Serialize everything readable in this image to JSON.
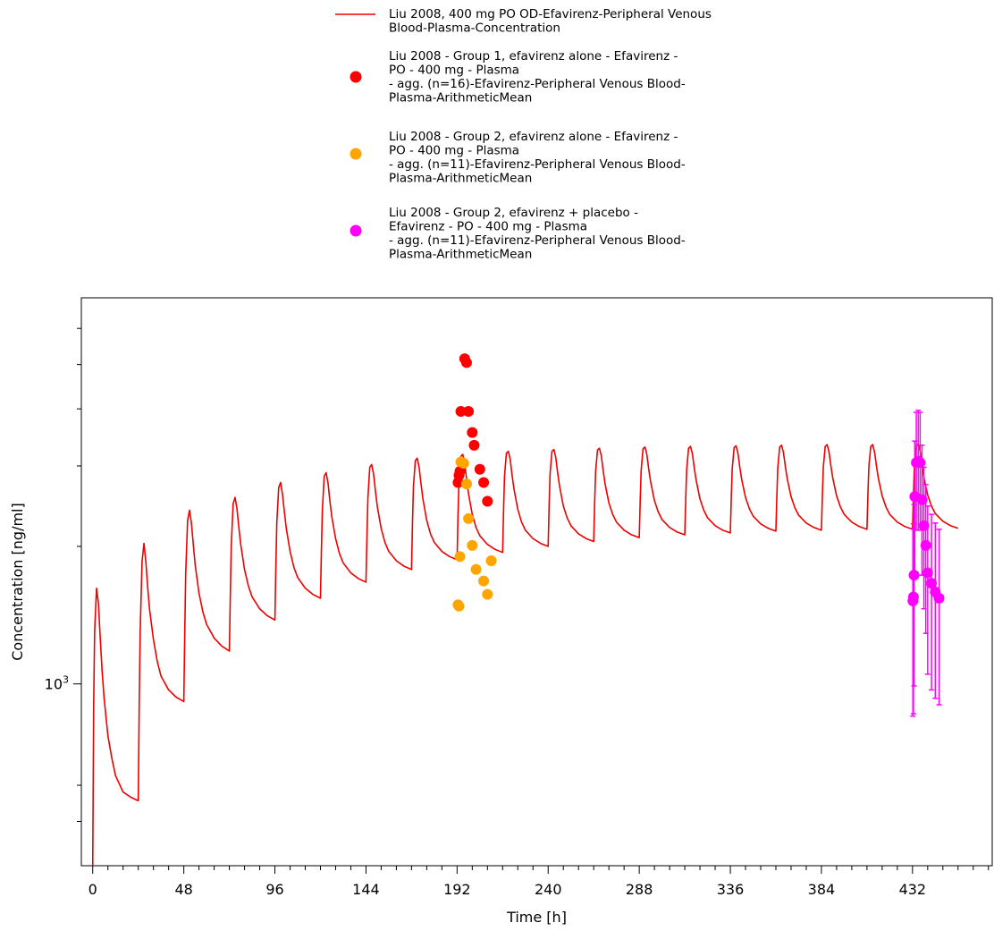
{
  "chart_data": {
    "type": "line",
    "title": "",
    "xlabel": "Time [h]",
    "ylabel": "Concentration [ng/ml]",
    "y_scale": "log",
    "xlim": [
      -6,
      474
    ],
    "ylim": [
      400,
      7000
    ],
    "x_ticks": [
      0,
      48,
      96,
      144,
      192,
      240,
      288,
      336,
      384,
      432
    ],
    "x_tick_labels": [
      "0",
      "48",
      "96",
      "144",
      "192",
      "240",
      "288",
      "336",
      "384",
      "432"
    ],
    "x_minor_step": 8,
    "y_tick_label": {
      "base": "10",
      "exponent": "3",
      "value": 1000
    },
    "y_minor_ticks": [
      500,
      600,
      2000,
      3000,
      4000,
      5000,
      6000
    ],
    "legend": {
      "placement": "top-center"
    },
    "grid": false,
    "simulation_series": {
      "name_lines": [
        "Liu 2008, 400 mg PO OD-Efavirenz-Peripheral Venous",
        "Blood-Plasma-Concentration"
      ],
      "color": "#ee0000",
      "dose_interval_h": 24,
      "n_doses": 19,
      "end_time_h": 456,
      "x": [
        0,
        0.5,
        1,
        2,
        3,
        4,
        5,
        6,
        8,
        10,
        12,
        16,
        20,
        24,
        24.5,
        25,
        26,
        27,
        28,
        29,
        30,
        32,
        34,
        36,
        40,
        44,
        48,
        48.5,
        49,
        50,
        51,
        52,
        53,
        54,
        56,
        58,
        60,
        64,
        68,
        72,
        72.5,
        73,
        74,
        75,
        76,
        77,
        78,
        80,
        82,
        84,
        88,
        92,
        96,
        96.5,
        97,
        98,
        99,
        100,
        101,
        102,
        104,
        106,
        108,
        112,
        116,
        120,
        120.5,
        121,
        122,
        123,
        124,
        125,
        126,
        128,
        130,
        132,
        136,
        140,
        144,
        144.5,
        145,
        146,
        147,
        148,
        149,
        150,
        152,
        154,
        156,
        160,
        164,
        168,
        168.5,
        169,
        170,
        171,
        172,
        173,
        174,
        176,
        178,
        180,
        184,
        188,
        192,
        192.5,
        193,
        194,
        195,
        196,
        197,
        198,
        200,
        202,
        204,
        208,
        212,
        216,
        216.5,
        217,
        218,
        219,
        220,
        221,
        222,
        224,
        226,
        228,
        232,
        236,
        240,
        240.5,
        241,
        242,
        243,
        244,
        245,
        246,
        248,
        250,
        252,
        256,
        260,
        264,
        264.5,
        265,
        266,
        267,
        268,
        269,
        270,
        272,
        274,
        276,
        280,
        284,
        288,
        288.5,
        289,
        290,
        291,
        292,
        293,
        294,
        296,
        298,
        300,
        304,
        308,
        312,
        312.5,
        313,
        314,
        315,
        316,
        317,
        318,
        320,
        322,
        324,
        328,
        332,
        336,
        336.5,
        337,
        338,
        339,
        340,
        341,
        342,
        344,
        346,
        348,
        352,
        356,
        360,
        360.5,
        361,
        362,
        363,
        364,
        365,
        366,
        368,
        370,
        372,
        376,
        380,
        384,
        384.5,
        385,
        386,
        387,
        388,
        389,
        390,
        392,
        394,
        396,
        400,
        404,
        408,
        408.5,
        409,
        410,
        411,
        412,
        413,
        414,
        416,
        418,
        420,
        424,
        428,
        432,
        432.5,
        433,
        434,
        435,
        436,
        437,
        438,
        440,
        442,
        444,
        448,
        452,
        456
      ],
      "y": [
        400,
        900,
        1300,
        1620,
        1500,
        1250,
        1060,
        930,
        770,
        690,
        630,
        580,
        565,
        555,
        900,
        1300,
        1850,
        2030,
        1850,
        1620,
        1450,
        1250,
        1120,
        1040,
        970,
        935,
        915,
        1300,
        1750,
        2280,
        2400,
        2250,
        2020,
        1820,
        1580,
        1440,
        1350,
        1260,
        1210,
        1180,
        1550,
        2000,
        2480,
        2560,
        2420,
        2200,
        2020,
        1780,
        1640,
        1550,
        1460,
        1410,
        1380,
        1800,
        2250,
        2690,
        2760,
        2600,
        2380,
        2190,
        1950,
        1800,
        1710,
        1620,
        1570,
        1540,
        1950,
        2400,
        2850,
        2900,
        2750,
        2510,
        2320,
        2080,
        1930,
        1840,
        1750,
        1700,
        1670,
        2100,
        2550,
        2980,
        3020,
        2880,
        2640,
        2440,
        2190,
        2040,
        1950,
        1860,
        1810,
        1780,
        2250,
        2700,
        3080,
        3120,
        2980,
        2740,
        2540,
        2280,
        2130,
        2040,
        1950,
        1900,
        1870,
        2350,
        2780,
        3150,
        3180,
        3050,
        2810,
        2610,
        2350,
        2200,
        2110,
        2020,
        1970,
        1940,
        2400,
        2850,
        3200,
        3230,
        3100,
        2860,
        2670,
        2410,
        2260,
        2170,
        2080,
        2030,
        2000,
        2450,
        2880,
        3230,
        3260,
        3130,
        2900,
        2710,
        2450,
        2310,
        2220,
        2130,
        2080,
        2050,
        2490,
        2910,
        3250,
        3280,
        3160,
        2930,
        2740,
        2490,
        2350,
        2260,
        2170,
        2120,
        2090,
        2520,
        2930,
        3270,
        3300,
        3180,
        2950,
        2770,
        2520,
        2380,
        2290,
        2200,
        2150,
        2120,
        2540,
        2950,
        3280,
        3310,
        3190,
        2970,
        2790,
        2540,
        2400,
        2310,
        2220,
        2170,
        2140,
        2560,
        2960,
        3290,
        3320,
        3200,
        2980,
        2800,
        2560,
        2420,
        2330,
        2240,
        2190,
        2160,
        2570,
        2970,
        3300,
        3330,
        3210,
        2990,
        2810,
        2570,
        2430,
        2340,
        2250,
        2200,
        2170,
        2580,
        2980,
        3310,
        3340,
        3220,
        3000,
        2820,
        2580,
        2440,
        2350,
        2260,
        2210,
        2180,
        2590,
        2990,
        3310,
        3340,
        3220,
        3000,
        2820,
        2580,
        2440,
        2350,
        2260,
        2210,
        2180,
        2600,
        3000,
        3320,
        3350,
        3230,
        3010,
        2830,
        2590,
        2450,
        2360,
        2270,
        2220,
        2190
      ]
    },
    "observed_series": [
      {
        "name_lines": [
          "Liu 2008 - Group 1, efavirenz alone - Efavirenz -",
          "PO - 400 mg - Plasma",
          "- agg. (n=16)-Efavirenz-Peripheral Venous Blood-",
          "Plasma-ArithmeticMean"
        ],
        "color": "#ff0000",
        "x": [
          192.5,
          193,
          193.5,
          194,
          196,
          197,
          198,
          200,
          201,
          204,
          206,
          208
        ],
        "y": [
          2760,
          2860,
          2920,
          3950,
          5150,
          5050,
          3950,
          3550,
          3330,
          2950,
          2760,
          2510
        ]
      },
      {
        "name_lines": [
          "Liu 2008 - Group 2, efavirenz alone - Efavirenz -",
          "PO - 400 mg - Plasma",
          "- agg. (n=11)-Efavirenz-Peripheral Venous Blood-",
          "Plasma-ArithmeticMean"
        ],
        "color": "#ffa500",
        "x": [
          192.5,
          193,
          193.5,
          194,
          195.5,
          197,
          198,
          200,
          202,
          206,
          208,
          210
        ],
        "y": [
          1490,
          1480,
          1900,
          3060,
          3040,
          2740,
          2300,
          2010,
          1780,
          1680,
          1570,
          1860
        ]
      },
      {
        "name_lines": [
          "Liu 2008 - Group 2, efavirenz + placebo -",
          "Efavirenz - PO - 400 mg - Plasma",
          "- agg. (n=11)-Efavirenz-Peripheral Venous Blood-",
          "Plasma-ArithmeticMean"
        ],
        "color": "#ff00ff",
        "x": [
          432.2,
          432.5,
          432.8,
          433.2,
          434,
          435,
          436,
          437,
          438,
          439,
          440,
          442,
          444,
          446
        ],
        "y": [
          1520,
          1550,
          1730,
          2570,
          3050,
          3070,
          3050,
          2530,
          2220,
          2010,
          1750,
          1660,
          1590,
          1540
        ],
        "y_err": [
          670,
          690,
          740,
          830,
          880,
          900,
          880,
          800,
          760,
          720,
          700,
          690,
          660,
          640
        ]
      }
    ]
  }
}
